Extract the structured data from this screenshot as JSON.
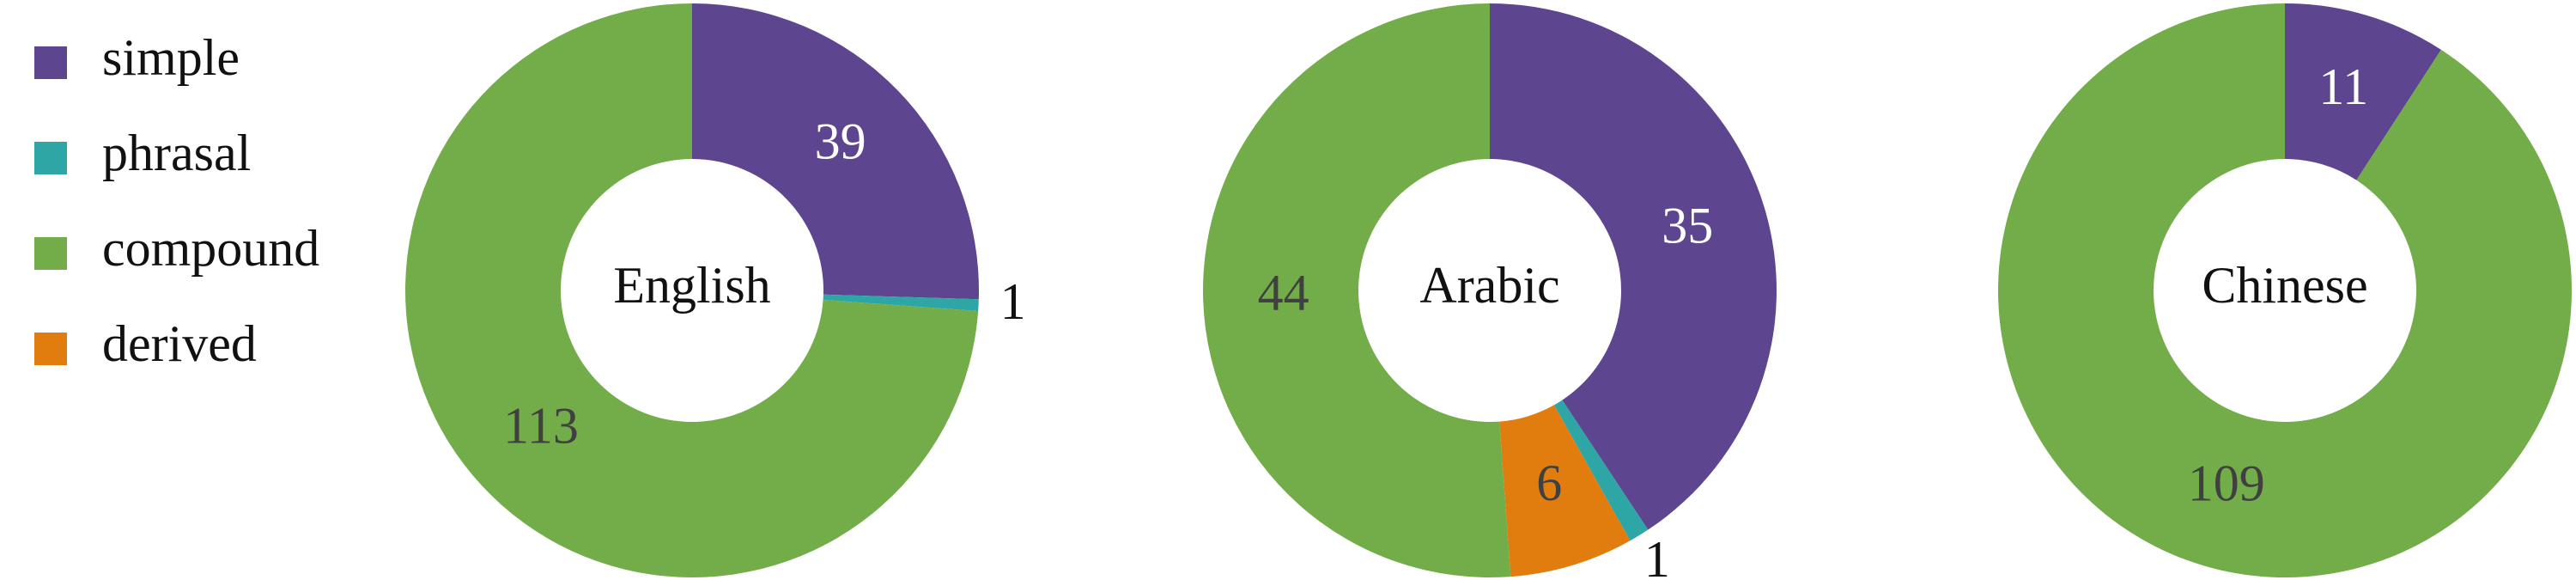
{
  "chart_data": [
    {
      "type": "pie",
      "label": "English",
      "categories": [
        "simple",
        "phrasal",
        "compound"
      ],
      "values": [
        39,
        1,
        113
      ],
      "colors": [
        "#5d4590",
        "#2ea6a6",
        "#72ad4a"
      ]
    },
    {
      "type": "pie",
      "label": "Arabic",
      "categories": [
        "simple",
        "phrasal",
        "derived",
        "compound"
      ],
      "values": [
        35,
        1,
        6,
        44
      ],
      "colors": [
        "#5d4590",
        "#2ea6a6",
        "#e07d0e",
        "#72ad4a"
      ]
    },
    {
      "type": "pie",
      "label": "Chinese",
      "categories": [
        "simple",
        "compound"
      ],
      "values": [
        11,
        109
      ],
      "colors": [
        "#5d4590",
        "#72ad4a"
      ]
    }
  ],
  "legend": {
    "position": "left",
    "entries": [
      {
        "name": "simple",
        "color": "#5d4590"
      },
      {
        "name": "phrasal",
        "color": "#2ea6a6"
      },
      {
        "name": "compound",
        "color": "#72ad4a"
      },
      {
        "name": "derived",
        "color": "#e07d0e"
      }
    ]
  }
}
